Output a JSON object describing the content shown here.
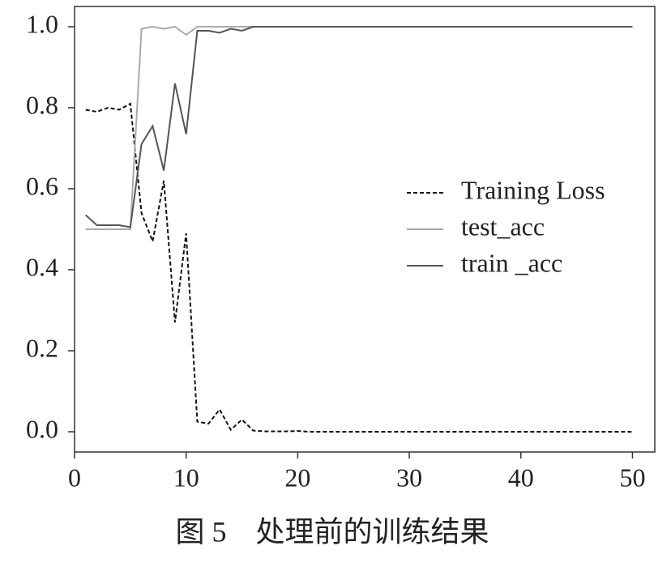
{
  "chart_data": {
    "type": "line",
    "caption": "图 5　处理前的训练结果",
    "x": [
      1,
      2,
      3,
      4,
      5,
      6,
      7,
      8,
      9,
      10,
      11,
      12,
      13,
      14,
      15,
      16,
      17,
      18,
      19,
      20,
      21,
      22,
      23,
      24,
      25,
      26,
      27,
      28,
      29,
      30,
      31,
      32,
      33,
      34,
      35,
      36,
      37,
      38,
      39,
      40,
      41,
      42,
      43,
      44,
      45,
      46,
      47,
      48,
      49,
      50
    ],
    "series": [
      {
        "name": "Training Loss",
        "color": "#111111",
        "linestyle": "dashed",
        "values": [
          0.795,
          0.79,
          0.8,
          0.795,
          0.81,
          0.54,
          0.47,
          0.62,
          0.27,
          0.49,
          0.025,
          0.02,
          0.055,
          0.005,
          0.03,
          0.003,
          0.001,
          0.001,
          0.001,
          0.002,
          0,
          0,
          0,
          0,
          0,
          0,
          0,
          0,
          0,
          0,
          0,
          0,
          0,
          0,
          0,
          0,
          0,
          0,
          0,
          0,
          0,
          0,
          0,
          0,
          0,
          0,
          0,
          0,
          0,
          0
        ]
      },
      {
        "name": "test_acc",
        "color": "#aaaaaa",
        "linestyle": "solid",
        "values": [
          0.5,
          0.5,
          0.5,
          0.5,
          0.5,
          0.995,
          1.0,
          0.995,
          1.0,
          0.98,
          1.0,
          1.0,
          1.0,
          1.0,
          1.0,
          1.0,
          1.0,
          1.0,
          1.0,
          1.0,
          1.0,
          1.0,
          1.0,
          1.0,
          1.0,
          1.0,
          1.0,
          1.0,
          1.0,
          1.0,
          1.0,
          1.0,
          1.0,
          1.0,
          1.0,
          1.0,
          1.0,
          1.0,
          1.0,
          1.0,
          1.0,
          1.0,
          1.0,
          1.0,
          1.0,
          1.0,
          1.0,
          1.0,
          1.0,
          1.0
        ]
      },
      {
        "name": "train _acc",
        "color": "#555555",
        "linestyle": "solid",
        "values": [
          0.535,
          0.51,
          0.51,
          0.51,
          0.505,
          0.71,
          0.755,
          0.645,
          0.86,
          0.735,
          0.99,
          0.99,
          0.985,
          0.995,
          0.99,
          1.0,
          1.0,
          1.0,
          1.0,
          1.0,
          1.0,
          1.0,
          1.0,
          1.0,
          1.0,
          1.0,
          1.0,
          1.0,
          1.0,
          1.0,
          1.0,
          1.0,
          1.0,
          1.0,
          1.0,
          1.0,
          1.0,
          1.0,
          1.0,
          1.0,
          1.0,
          1.0,
          1.0,
          1.0,
          1.0,
          1.0,
          1.0,
          1.0,
          1.0,
          1.0
        ]
      }
    ],
    "xlim": [
      0,
      52
    ],
    "xticks": [
      0,
      10,
      20,
      30,
      40,
      50
    ],
    "ylim": [
      -0.05,
      1.05
    ],
    "yticks": [
      {
        "value": 0,
        "label": "0.0"
      },
      0.2,
      0.4,
      0.6,
      0.8,
      {
        "value": 1,
        "label": "1.0"
      }
    ],
    "grid": false,
    "legend": "center right"
  }
}
